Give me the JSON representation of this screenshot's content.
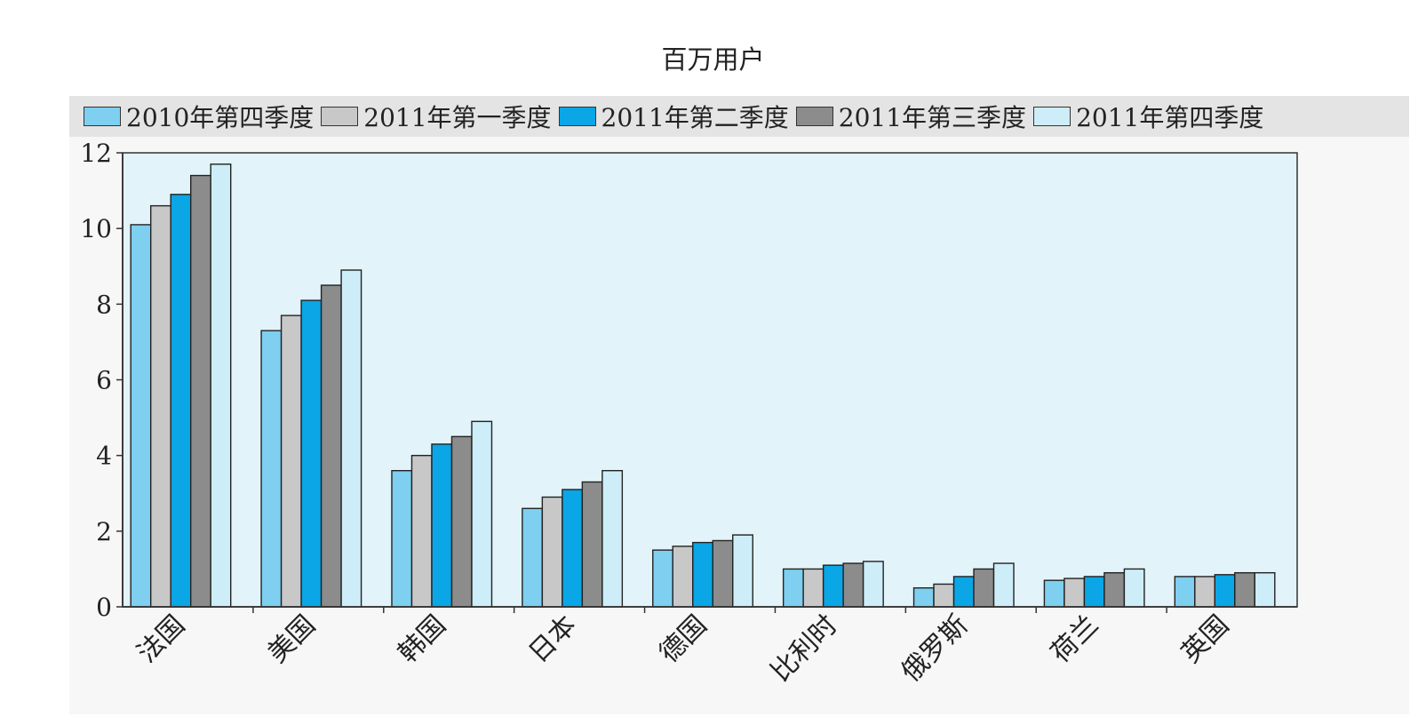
{
  "chart_data": {
    "type": "bar",
    "title": "百万用户",
    "categories": [
      "法国",
      "美国",
      "韩国",
      "日本",
      "德国",
      "比利时",
      "俄罗斯",
      "荷兰",
      "英国"
    ],
    "series": [
      {
        "name": "2010年第四季度",
        "color": "#7ecff0",
        "values": [
          10.1,
          7.3,
          3.6,
          2.6,
          1.5,
          1.0,
          0.5,
          0.7,
          0.8
        ]
      },
      {
        "name": "2011年第一季度",
        "color": "#c8c8c8",
        "values": [
          10.6,
          7.7,
          4.0,
          2.9,
          1.6,
          1.0,
          0.6,
          0.75,
          0.8
        ]
      },
      {
        "name": "2011年第二季度",
        "color": "#0aa6e6",
        "values": [
          10.9,
          8.1,
          4.3,
          3.1,
          1.7,
          1.1,
          0.8,
          0.8,
          0.85
        ]
      },
      {
        "name": "2011年第三季度",
        "color": "#8c8c8c",
        "values": [
          11.4,
          8.5,
          4.5,
          3.3,
          1.75,
          1.15,
          1.0,
          0.9,
          0.9
        ]
      },
      {
        "name": "2011年第四季度",
        "color": "#cdeef9",
        "values": [
          11.7,
          8.9,
          4.9,
          3.6,
          1.9,
          1.2,
          1.15,
          1.0,
          0.9
        ]
      }
    ],
    "y_ticks": [
      "0",
      "2",
      "4",
      "6",
      "8",
      "10",
      "12"
    ],
    "ylim": [
      0,
      12
    ],
    "grid": false,
    "legend": "top",
    "plot_background": "#e2f3f9"
  }
}
